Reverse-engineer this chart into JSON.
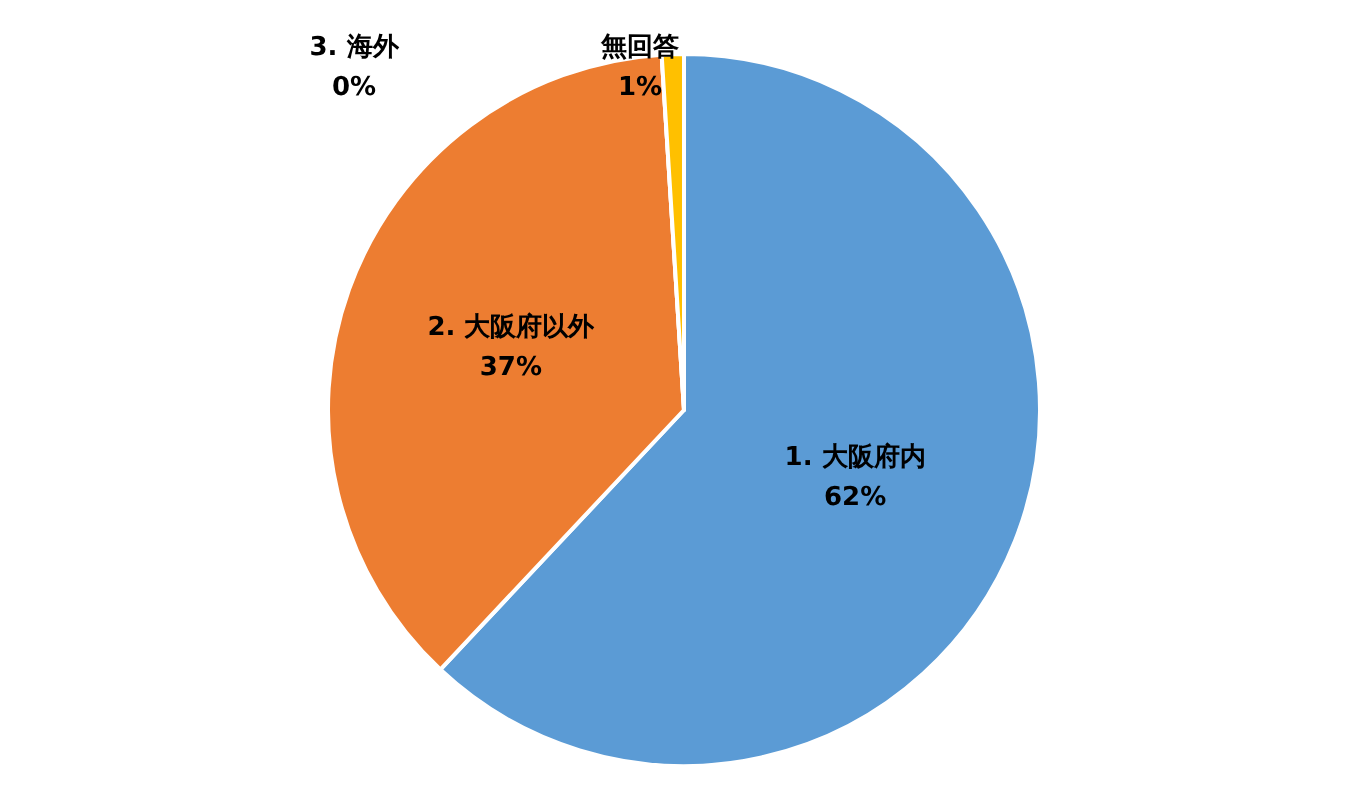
{
  "chart_data": {
    "type": "pie",
    "categories": [
      "1. 大阪府内",
      "2. 大阪府以外",
      "3. 海外",
      "無回答"
    ],
    "values": [
      62,
      37,
      0,
      1
    ],
    "colors": [
      "#5b9bd5",
      "#ed7d31",
      "#a5a5a5",
      "#ffc000"
    ],
    "value_labels": [
      "62%",
      "37%",
      "0%",
      "1%"
    ],
    "legend": false
  }
}
